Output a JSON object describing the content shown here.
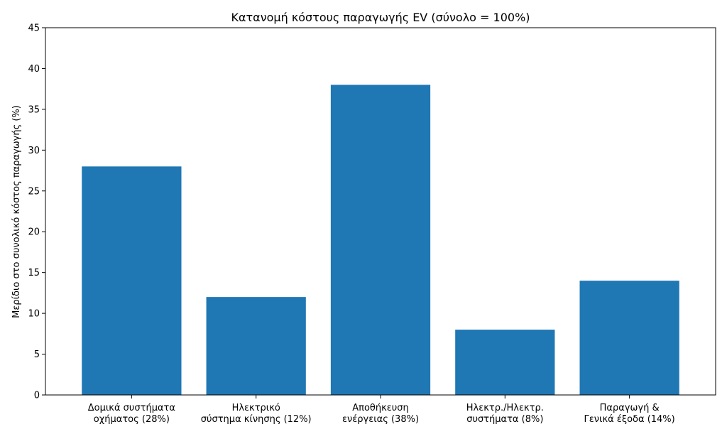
{
  "chart_data": {
    "type": "bar",
    "title": "Κατανομή κόστους παραγωγής EV (σύνολο = 100%)",
    "xlabel": "",
    "ylabel": "Μερίδιο στο συνολικό κόστος παραγωγής (%)",
    "ylim": [
      0,
      45
    ],
    "yticks": [
      "0",
      "5",
      "10",
      "15",
      "20",
      "25",
      "30",
      "35",
      "40",
      "45"
    ],
    "grid": false,
    "bar_color": "#1f77b4",
    "categories": [
      [
        "Δομικά συστήματα",
        "οχήματος (28%)"
      ],
      [
        "Ηλεκτρικό",
        "σύστημα κίνησης (12%)"
      ],
      [
        "Αποθήκευση",
        "ενέργειας (38%)"
      ],
      [
        "Ηλεκτρ./Ηλεκτρ.",
        "συστήματα (8%)"
      ],
      [
        "Παραγωγή &",
        "Γενικά έξοδα (14%)"
      ]
    ],
    "values": [
      28,
      12,
      38,
      8,
      14
    ]
  }
}
